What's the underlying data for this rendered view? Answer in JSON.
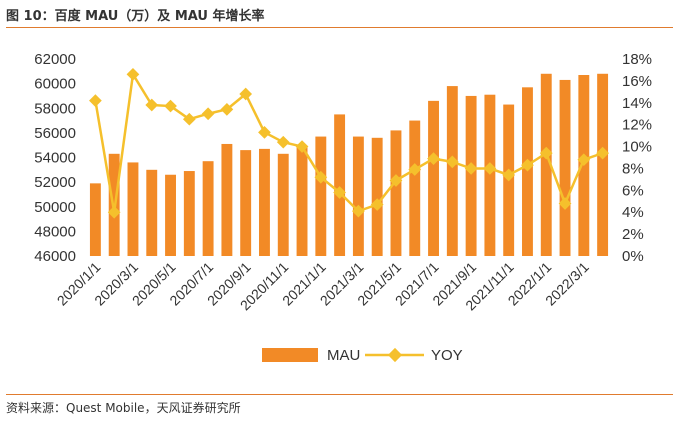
{
  "header": {
    "title": "图 10：百度 MAU（万）及 MAU 年增长率"
  },
  "footer": {
    "source": "资料来源：Quest Mobile，天风证券研究所"
  },
  "colors": {
    "bar": "#f28a26",
    "line": "#f5c02c",
    "accent": "#e07b2e",
    "axis_text": "#333333"
  },
  "chart_data": {
    "type": "bar+line",
    "title": "百度 MAU（万）及 MAU 年增长率",
    "categories": [
      "2020/1/1",
      "2020/2/1",
      "2020/3/1",
      "2020/4/1",
      "2020/5/1",
      "2020/6/1",
      "2020/7/1",
      "2020/8/1",
      "2020/9/1",
      "2020/10/1",
      "2020/11/1",
      "2020/12/1",
      "2021/1/1",
      "2021/2/1",
      "2021/3/1",
      "2021/4/1",
      "2021/5/1",
      "2021/6/1",
      "2021/7/1",
      "2021/8/1",
      "2021/9/1",
      "2021/10/1",
      "2021/11/1",
      "2021/12/1",
      "2022/1/1",
      "2022/2/1",
      "2022/3/1",
      "2022/4/1"
    ],
    "tick_labels": [
      "2020/1/1",
      "2020/3/1",
      "2020/5/1",
      "2020/7/1",
      "2020/9/1",
      "2020/11/1",
      "2021/1/1",
      "2021/3/1",
      "2021/5/1",
      "2021/7/1",
      "2021/9/1",
      "2021/11/1",
      "2022/1/1",
      "2022/3/1"
    ],
    "series": [
      {
        "name": "MAU",
        "type": "bar",
        "axis": "left",
        "values": [
          51900,
          54300,
          53600,
          53000,
          52600,
          52900,
          53700,
          55100,
          54600,
          54700,
          54300,
          54900,
          55700,
          57500,
          55700,
          55600,
          56200,
          57000,
          58600,
          59800,
          59000,
          59100,
          58300,
          59700,
          60800,
          60300,
          60700,
          60800
        ]
      },
      {
        "name": "YOY",
        "type": "line",
        "axis": "right",
        "values": [
          14.2,
          4.0,
          16.6,
          13.8,
          13.7,
          12.5,
          13.0,
          13.4,
          14.8,
          11.3,
          10.4,
          10.0,
          7.2,
          5.8,
          4.1,
          4.7,
          6.9,
          7.9,
          8.9,
          8.6,
          8.0,
          8.0,
          7.4,
          8.3,
          9.4,
          4.8,
          8.8,
          9.4
        ]
      }
    ],
    "y_left": {
      "min": 46000,
      "max": 62000,
      "step": 2000,
      "ticks": [
        "46000",
        "48000",
        "50000",
        "52000",
        "54000",
        "56000",
        "58000",
        "60000",
        "62000"
      ]
    },
    "y_right": {
      "min": 0,
      "max": 18,
      "step": 2,
      "ticks": [
        "0%",
        "2%",
        "4%",
        "6%",
        "8%",
        "10%",
        "12%",
        "14%",
        "16%",
        "18%"
      ]
    },
    "legend": {
      "position": "bottom",
      "items": [
        "MAU",
        "YOY"
      ]
    }
  }
}
